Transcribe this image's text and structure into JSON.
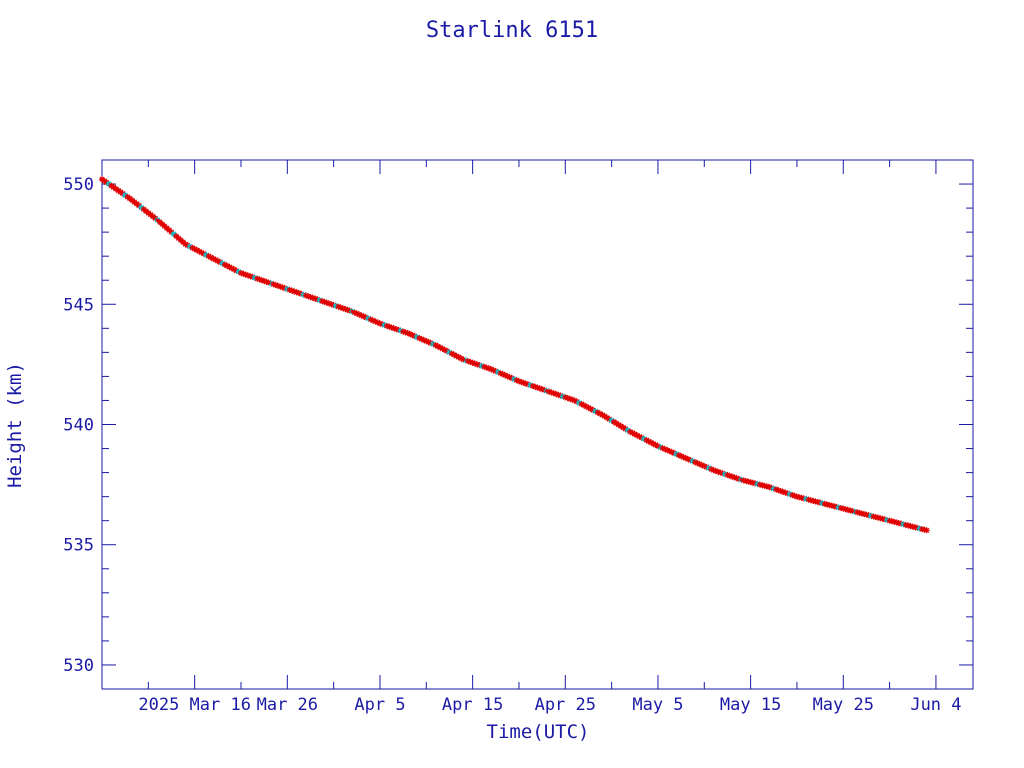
{
  "chart_data": {
    "type": "scatter",
    "title": "Starlink 6151",
    "xlabel": "Time(UTC)",
    "ylabel": "Height (km)",
    "x_range": [
      "2025-03-06",
      "2025-06-08"
    ],
    "ylim": [
      529,
      551
    ],
    "y_ticks": [
      530,
      535,
      540,
      545,
      550
    ],
    "x_ticks": [
      {
        "date": "2025-03-16",
        "label": "2025 Mar 16"
      },
      {
        "date": "2025-03-26",
        "label": "Mar 26"
      },
      {
        "date": "2025-04-05",
        "label": "Apr  5"
      },
      {
        "date": "2025-04-15",
        "label": "Apr 15"
      },
      {
        "date": "2025-04-25",
        "label": "Apr 25"
      },
      {
        "date": "2025-05-05",
        "label": "May  5"
      },
      {
        "date": "2025-05-15",
        "label": "May 15"
      },
      {
        "date": "2025-05-25",
        "label": "May 25"
      },
      {
        "date": "2025-06-04",
        "label": "Jun  4"
      }
    ],
    "grid": false,
    "colors": {
      "axes": "#1a1aa6",
      "fit_line": "#000000",
      "points": "#e00000",
      "alt_points": "#00c8d8"
    },
    "series": [
      {
        "values": [
          {
            "x": "2025-03-06",
            "y": 550.2
          },
          {
            "x": "2025-03-09",
            "y": 549.4
          },
          {
            "x": "2025-03-12",
            "y": 548.5
          },
          {
            "x": "2025-03-15",
            "y": 547.5
          },
          {
            "x": "2025-03-18",
            "y": 546.9
          },
          {
            "x": "2025-03-21",
            "y": 546.3
          },
          {
            "x": "2025-03-24",
            "y": 545.9
          },
          {
            "x": "2025-03-27",
            "y": 545.5
          },
          {
            "x": "2025-03-30",
            "y": 545.1
          },
          {
            "x": "2025-04-02",
            "y": 544.7
          },
          {
            "x": "2025-04-05",
            "y": 544.2
          },
          {
            "x": "2025-04-08",
            "y": 543.8
          },
          {
            "x": "2025-04-11",
            "y": 543.3
          },
          {
            "x": "2025-04-14",
            "y": 542.7
          },
          {
            "x": "2025-04-17",
            "y": 542.3
          },
          {
            "x": "2025-04-20",
            "y": 541.8
          },
          {
            "x": "2025-04-23",
            "y": 541.4
          },
          {
            "x": "2025-04-26",
            "y": 541.0
          },
          {
            "x": "2025-04-29",
            "y": 540.4
          },
          {
            "x": "2025-05-02",
            "y": 539.7
          },
          {
            "x": "2025-05-05",
            "y": 539.1
          },
          {
            "x": "2025-05-08",
            "y": 538.6
          },
          {
            "x": "2025-05-11",
            "y": 538.1
          },
          {
            "x": "2025-05-14",
            "y": 537.7
          },
          {
            "x": "2025-05-17",
            "y": 537.4
          },
          {
            "x": "2025-05-20",
            "y": 537.0
          },
          {
            "x": "2025-05-23",
            "y": 536.7
          },
          {
            "x": "2025-05-26",
            "y": 536.4
          },
          {
            "x": "2025-05-29",
            "y": 536.1
          },
          {
            "x": "2025-06-01",
            "y": 535.8
          },
          {
            "x": "2025-06-03",
            "y": 535.6
          }
        ]
      }
    ]
  }
}
